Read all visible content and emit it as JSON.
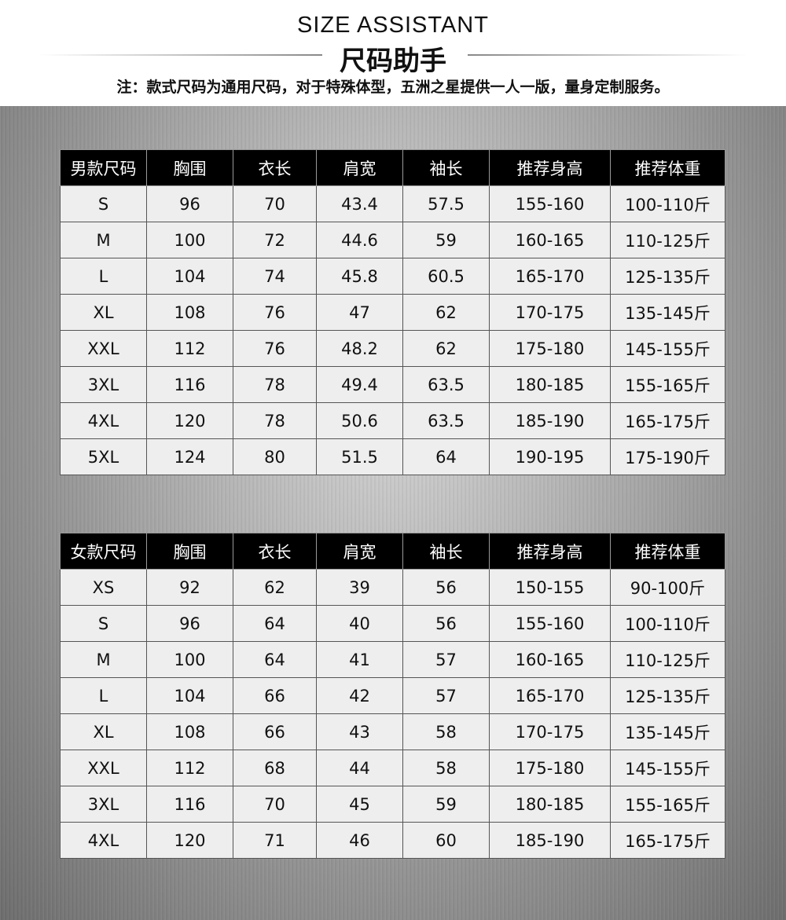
{
  "header": {
    "title_en": "SIZE ASSISTANT",
    "title_cn": "尺码助手",
    "note": "注：款式尺码为通用尺码，对于特殊体型，五洲之星提供一人一版，量身定制服务。"
  },
  "mens": {
    "headers": [
      "男款尺码",
      "胸围",
      "衣长",
      "肩宽",
      "袖长",
      "推荐身高",
      "推荐体重"
    ],
    "rows": [
      [
        "S",
        "96",
        "70",
        "43.4",
        "57.5",
        "155-160",
        "100-110斤"
      ],
      [
        "M",
        "100",
        "72",
        "44.6",
        "59",
        "160-165",
        "110-125斤"
      ],
      [
        "L",
        "104",
        "74",
        "45.8",
        "60.5",
        "165-170",
        "125-135斤"
      ],
      [
        "XL",
        "108",
        "76",
        "47",
        "62",
        "170-175",
        "135-145斤"
      ],
      [
        "XXL",
        "112",
        "76",
        "48.2",
        "62",
        "175-180",
        "145-155斤"
      ],
      [
        "3XL",
        "116",
        "78",
        "49.4",
        "63.5",
        "180-185",
        "155-165斤"
      ],
      [
        "4XL",
        "120",
        "78",
        "50.6",
        "63.5",
        "185-190",
        "165-175斤"
      ],
      [
        "5XL",
        "124",
        "80",
        "51.5",
        "64",
        "190-195",
        "175-190斤"
      ]
    ]
  },
  "womens": {
    "headers": [
      "女款尺码",
      "胸围",
      "衣长",
      "肩宽",
      "袖长",
      "推荐身高",
      "推荐体重"
    ],
    "rows": [
      [
        "XS",
        "92",
        "62",
        "39",
        "56",
        "150-155",
        "90-100斤"
      ],
      [
        "S",
        "96",
        "64",
        "40",
        "56",
        "155-160",
        "100-110斤"
      ],
      [
        "M",
        "100",
        "64",
        "41",
        "57",
        "160-165",
        "110-125斤"
      ],
      [
        "L",
        "104",
        "66",
        "42",
        "57",
        "165-170",
        "125-135斤"
      ],
      [
        "XL",
        "108",
        "66",
        "43",
        "58",
        "170-175",
        "135-145斤"
      ],
      [
        "XXL",
        "112",
        "68",
        "44",
        "58",
        "175-180",
        "145-155斤"
      ],
      [
        "3XL",
        "116",
        "70",
        "45",
        "59",
        "180-185",
        "155-165斤"
      ],
      [
        "4XL",
        "120",
        "71",
        "46",
        "60",
        "185-190",
        "165-175斤"
      ]
    ]
  }
}
